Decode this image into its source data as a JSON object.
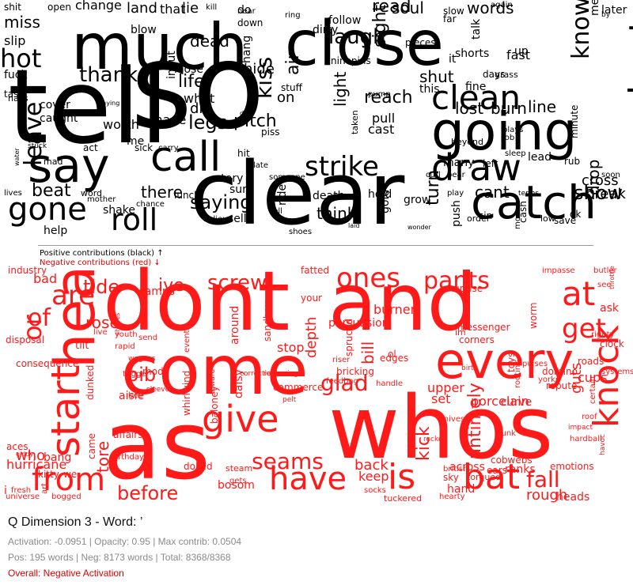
{
  "wordclouds": {
    "positive_label": "Positive contributions (black) ↑",
    "negative_label": "Negative contributions (red) ↓",
    "positive_words": [
      "so",
      "tell",
      "clear",
      "much",
      "close",
      "going",
      "say",
      "catch",
      "call",
      "gone",
      "roll",
      "draw",
      "bust",
      "clean",
      "thanks",
      "hot",
      "strike",
      "leave",
      "saying",
      "life",
      "pitch",
      "laugh",
      "read",
      "soul",
      "words",
      "know",
      "shut",
      "lost",
      "burn",
      "line",
      "show",
      "cant",
      "beat",
      "there",
      "drop",
      "cross",
      "change",
      "land",
      "that",
      "lie",
      "miss",
      "slip",
      "fuck",
      "dead",
      "die",
      "legs",
      "on",
      "kiss",
      "air",
      "light",
      "sight",
      "reach",
      "pull",
      "cast",
      "turn",
      "think",
      "death",
      "hold",
      "help",
      "shake",
      "sure",
      "sell",
      "loose",
      "what",
      "made",
      "worth",
      "hide",
      "story",
      "me",
      "it",
      "fast",
      "up",
      "later",
      "meet",
      "this",
      "shorts",
      "fine",
      "many",
      "left",
      "lead",
      "rub",
      "sin",
      "break",
      "save",
      "ok",
      "low",
      "cash",
      "order",
      "push",
      "grow",
      "gold",
      "ride",
      "do",
      "down",
      "hit",
      "piss",
      "stuff",
      "pieces",
      "slow",
      "far",
      "shit",
      "open",
      "blow",
      "inout",
      "hang",
      "dirty",
      "follow",
      "kill",
      "near",
      "ring",
      "again",
      "talk",
      "days",
      "grass",
      "cover",
      "caught",
      "task",
      "nails",
      "mad",
      "act",
      "sick",
      "carry",
      "lunch",
      "someone",
      "late",
      "ninepins",
      "taken",
      "pump",
      "plays",
      "job",
      "sleep",
      "beyond",
      "minute",
      "curl",
      "bear",
      "play",
      "soon",
      "by",
      "playing",
      "date",
      "water",
      "stuck",
      "lives",
      "word",
      "mother",
      "chance",
      "believe",
      "shoes",
      "laid",
      "wonder",
      "more",
      "sell",
      "terms",
      "look",
      "half",
      "mud",
      "nine",
      "tale",
      "flip",
      "lowers"
    ],
    "negative_words": [
      "as",
      "dont",
      "and",
      "come",
      "whos",
      "head",
      "start",
      "every",
      "have",
      "give",
      "is",
      "bat",
      "from",
      "knock",
      "at",
      "get",
      "ones",
      "pants",
      "screw",
      "are",
      "or",
      "of",
      "glad",
      "seams",
      "before",
      "fall",
      "rough",
      "tide",
      "ive",
      "bib",
      "tore",
      "keep",
      "back",
      "bill",
      "depth",
      "stop",
      "kick",
      "burner",
      "porcelain",
      "set",
      "upper",
      "guts",
      "ranks",
      "rose",
      "bad",
      "camps",
      "fatted",
      "uprise",
      "messenger",
      "ask",
      "cups",
      "systems",
      "righty",
      "clock",
      "roads",
      "worm",
      "untimely",
      "who",
      "hurricane",
      "i",
      "we",
      "aces",
      "bosom",
      "across",
      "sky",
      "hand",
      "heads",
      "emotions",
      "cobwebs",
      "ears",
      "toys",
      "im",
      "corners",
      "curve",
      "edges",
      "ol",
      "bricking",
      "feedbag",
      "daisy",
      "tilt",
      "sandboy",
      "around",
      "dunked",
      "aisle",
      "came",
      "disposal",
      "consequence",
      "industry",
      "impasse",
      "butler",
      "see",
      "throttle",
      "torqued",
      "socks",
      "hearty",
      "tuckered",
      "universe",
      "bogged",
      "baloney",
      "commerce",
      "your",
      "persuasion",
      "spruced",
      "riser",
      "pulses",
      "domino",
      "repute",
      "impact",
      "roof",
      "whirlwind",
      "mod",
      "gets",
      "steam",
      "dolled",
      "bang",
      "kitty",
      "art",
      "fresh",
      "giddy",
      "birthday",
      "affairs",
      "live",
      "wagons",
      "youth",
      "rapid",
      "shapes",
      "send",
      "events",
      "trigger",
      "bee",
      "sleeve",
      "toward",
      "correction",
      "reckoning",
      "pelt",
      "handle",
      "knives",
      "rootin",
      "yorks",
      "birth",
      "funk",
      "british",
      "certain",
      "hardball",
      "rocker",
      "havoc",
      "unknown",
      "stork",
      "curat",
      "bring",
      "cuppa",
      "bigger"
    ],
    "colors": {
      "positive": "#000000",
      "negative": "#ff1a1a"
    }
  },
  "info": {
    "title": "Q Dimension 3 - Word: ’",
    "stats_line": "Activation: -0.0951 | Opacity: 0.95 | Max contrib: 0.0504",
    "counts_line": "Pos: 195 words | Neg: 8173 words | Total: 8368/8368",
    "overall": "Overall: Negative Activation"
  }
}
